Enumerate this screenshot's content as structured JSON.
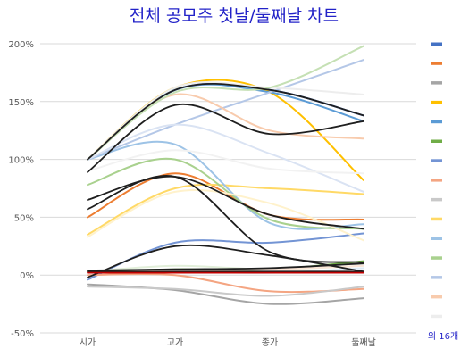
{
  "chart_data": {
    "type": "line",
    "title": "전체 공모주 첫날/둘째날 차트",
    "categories": [
      "시가",
      "고가",
      "종가",
      "둘째날"
    ],
    "y_ticks": [
      "200%",
      "150%",
      "100%",
      "50%",
      "0%",
      "-50%"
    ],
    "ylim": [
      -50,
      200
    ],
    "ylabel": "",
    "xlabel": "",
    "grid": "horizontal",
    "legend_position": "right",
    "legend_more": "외 16개",
    "series": [
      {
        "color": "#4472c4",
        "values": [
          100,
          160,
          160,
          138
        ]
      },
      {
        "color": "#ed7d31",
        "values": [
          50,
          88,
          52,
          48
        ]
      },
      {
        "color": "#a5a5a5",
        "values": [
          -8,
          -13,
          -25,
          -20
        ]
      },
      {
        "color": "#ffc000",
        "values": [
          100,
          162,
          158,
          82
        ]
      },
      {
        "color": "#5b9bd5",
        "values": [
          100,
          160,
          158,
          133
        ]
      },
      {
        "color": "#70ad47",
        "values": [
          3,
          5,
          5,
          12
        ]
      },
      {
        "color": "#7394d4",
        "values": [
          -4,
          28,
          28,
          36
        ]
      },
      {
        "color": "#f4a582",
        "values": [
          0,
          0,
          -14,
          -12
        ]
      },
      {
        "color": "#c9c9c9",
        "values": [
          -10,
          -12,
          -18,
          -10
        ]
      },
      {
        "color": "#ffd966",
        "values": [
          35,
          75,
          75,
          70
        ]
      },
      {
        "color": "#9dc3e6",
        "values": [
          100,
          113,
          45,
          44
        ]
      },
      {
        "color": "#a9d18e",
        "values": [
          78,
          100,
          48,
          40
        ]
      },
      {
        "color": "#b4c7e7",
        "values": [
          100,
          130,
          158,
          186
        ]
      },
      {
        "color": "#f8cbad",
        "values": [
          100,
          156,
          125,
          118
        ]
      },
      {
        "color": "#ededed",
        "values": [
          100,
          162,
          162,
          156
        ]
      }
    ],
    "extra_series": [
      {
        "color": "#c5e0b4",
        "values": [
          100,
          158,
          162,
          198
        ]
      },
      {
        "color": "#dae3f3",
        "values": [
          100,
          130,
          105,
          72
        ]
      },
      {
        "color": "#f2f2f2",
        "values": [
          90,
          108,
          92,
          88
        ]
      },
      {
        "color": "#fff2cc",
        "values": [
          33,
          72,
          62,
          30
        ]
      },
      {
        "color": "#e2efda",
        "values": [
          3,
          8,
          5,
          8
        ]
      },
      {
        "color": "#fbe5d6",
        "values": [
          2,
          4,
          5,
          8
        ]
      },
      {
        "color": "#ddebf7",
        "values": [
          2,
          3,
          2,
          6
        ]
      },
      {
        "color": "#1f1f1f",
        "values": [
          100,
          160,
          160,
          138
        ]
      },
      {
        "color": "#1f1f1f",
        "values": [
          89,
          147,
          122,
          133
        ]
      },
      {
        "color": "#1f1f1f",
        "values": [
          65,
          85,
          52,
          40
        ]
      },
      {
        "color": "#1f1f1f",
        "values": [
          57,
          85,
          20,
          11
        ]
      },
      {
        "color": "#1f1f1f",
        "values": [
          -2,
          25,
          17,
          3
        ]
      },
      {
        "color": "#1f1f1f",
        "values": [
          3,
          3,
          3,
          3
        ]
      },
      {
        "color": "#c00000",
        "values": [
          2,
          2,
          2,
          2
        ]
      },
      {
        "color": "#1f1f1f",
        "values": [
          4,
          5,
          6,
          10
        ]
      }
    ]
  }
}
